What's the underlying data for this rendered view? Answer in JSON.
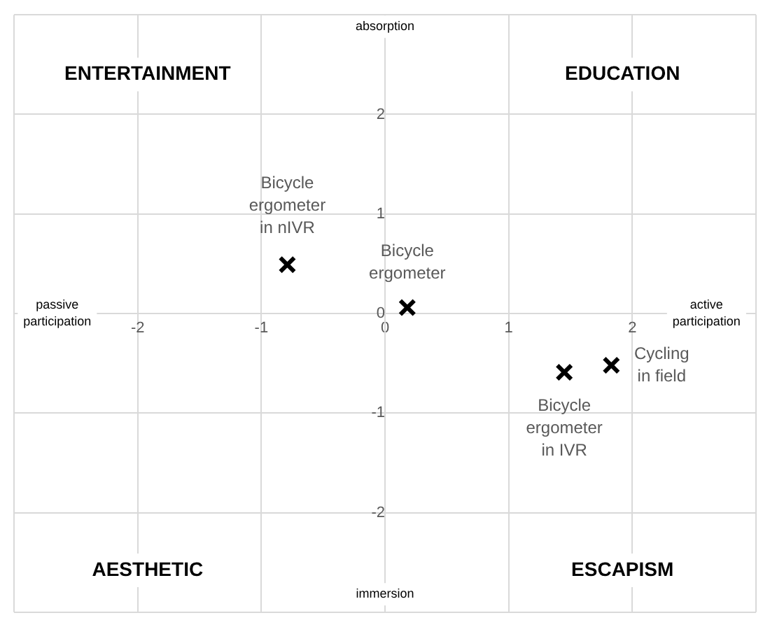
{
  "chart_data": {
    "type": "scatter",
    "series": [
      {
        "color": "#000000",
        "x": [
          -0.79,
          0.18,
          1.45,
          1.83
        ],
        "values": [
          0.49,
          0.06,
          -0.59,
          -0.52
        ]
      }
    ],
    "xlim": [
      -3,
      3
    ],
    "ylim": [
      -3,
      3
    ],
    "xticks": [
      {
        "value": -3,
        "label": null
      },
      -2,
      -1,
      0,
      1,
      2,
      {
        "value": 3,
        "label": null
      }
    ],
    "yticks": [
      {
        "value": -3,
        "label": null
      },
      -2,
      -1,
      0,
      1,
      2,
      {
        "value": 3,
        "label": null
      }
    ],
    "grid": true,
    "legend": false,
    "marker": "cross",
    "annotations": [
      "ENTERTAINMENT",
      "EDUCATION",
      "AESTHETIC",
      "ESCAPISM",
      "passive\nparticipation",
      "active\nparticipation",
      "absorption",
      "immersion",
      {
        "text": "Bicycle\nergometer\nin nIVR",
        "x": -0.79,
        "y": 0.49
      },
      {
        "text": "Bicycle\nergometer",
        "x": 0.18,
        "y": 0.06
      },
      {
        "text": "Bicycle\nergometer\nin IVR",
        "x": 1.45,
        "y": -0.59
      },
      {
        "text": "Cycling\nin field",
        "x": 1.83,
        "y": -0.52
      }
    ]
  }
}
